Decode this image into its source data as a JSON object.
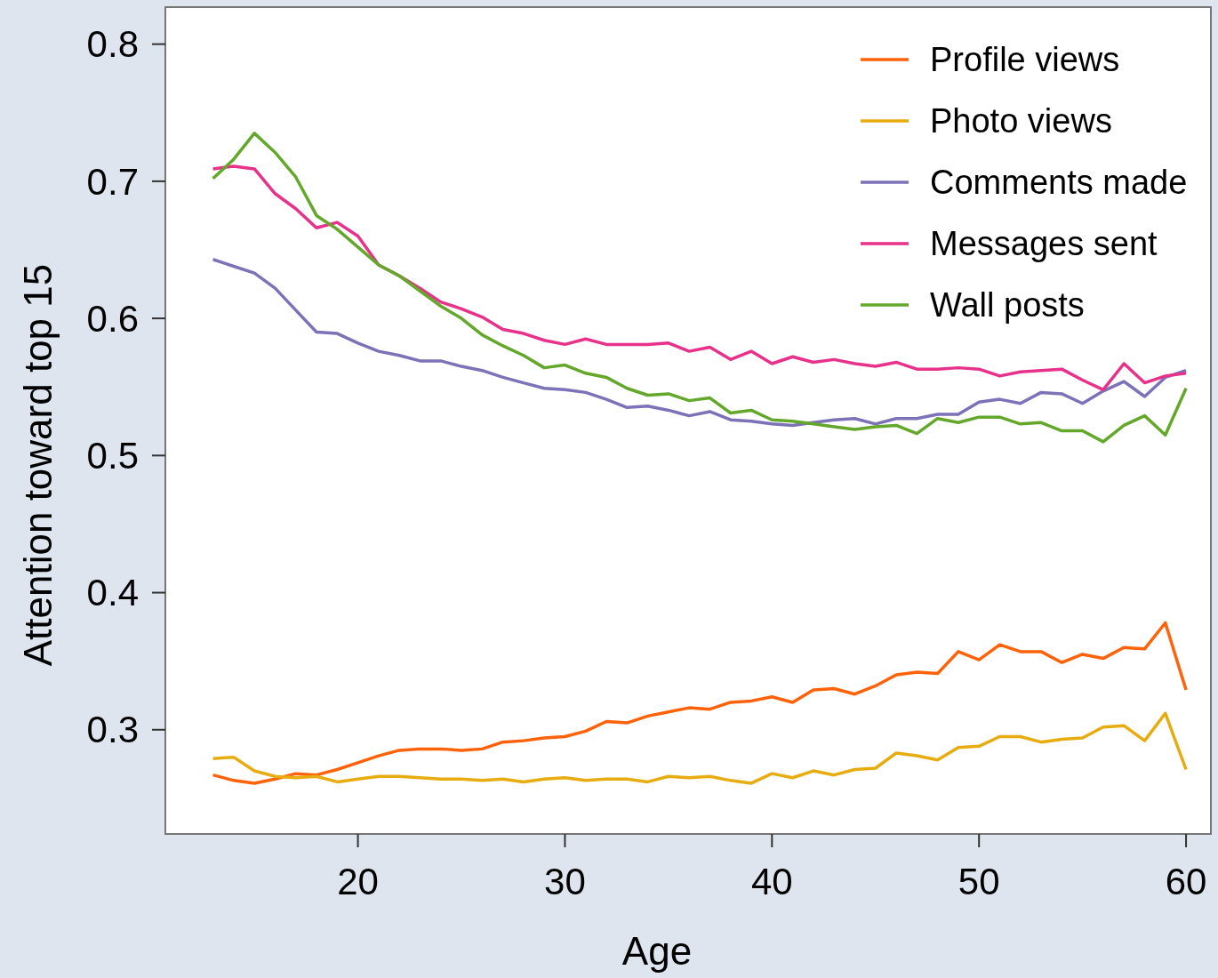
{
  "chart_data": {
    "type": "line",
    "xlabel": "Age",
    "ylabel": "Attention toward top 15",
    "x": [
      13,
      14,
      15,
      16,
      17,
      18,
      19,
      20,
      21,
      22,
      23,
      24,
      25,
      26,
      27,
      28,
      29,
      30,
      31,
      32,
      33,
      34,
      35,
      36,
      37,
      38,
      39,
      40,
      41,
      42,
      43,
      44,
      45,
      46,
      47,
      48,
      49,
      50,
      51,
      52,
      53,
      54,
      55,
      56,
      57,
      58,
      59,
      60
    ],
    "xlim": [
      10.7,
      61.2
    ],
    "xticks": [
      20,
      30,
      40,
      50,
      60
    ],
    "ylim": [
      0.224,
      0.827
    ],
    "yticks": [
      {
        "value": 0.3,
        "label": "0.3"
      },
      {
        "value": 0.4,
        "label": "0.4"
      },
      {
        "value": 0.5,
        "label": "0.5"
      },
      {
        "value": 0.6,
        "label": "0.6"
      },
      {
        "value": 0.7,
        "label": "0.7"
      },
      {
        "value": 0.8,
        "label": "0.8"
      }
    ],
    "legend": "top right",
    "grid": false,
    "series": [
      {
        "name": "Profile views",
        "color": "#ff6208",
        "values": [
          0.267,
          0.263,
          0.261,
          0.264,
          0.268,
          0.267,
          0.271,
          0.276,
          0.281,
          0.285,
          0.286,
          0.286,
          0.285,
          0.286,
          0.291,
          0.292,
          0.294,
          0.295,
          0.299,
          0.306,
          0.305,
          0.31,
          0.313,
          0.316,
          0.315,
          0.32,
          0.321,
          0.324,
          0.32,
          0.329,
          0.33,
          0.326,
          0.332,
          0.34,
          0.342,
          0.341,
          0.357,
          0.351,
          0.362,
          0.357,
          0.357,
          0.349,
          0.355,
          0.352,
          0.36,
          0.359,
          0.378,
          0.329
        ]
      },
      {
        "name": "Photo views",
        "color": "#e6ac10",
        "values": [
          0.279,
          0.28,
          0.27,
          0.266,
          0.265,
          0.266,
          0.262,
          0.264,
          0.266,
          0.266,
          0.265,
          0.264,
          0.264,
          0.263,
          0.264,
          0.262,
          0.264,
          0.265,
          0.263,
          0.264,
          0.264,
          0.262,
          0.266,
          0.265,
          0.266,
          0.263,
          0.261,
          0.268,
          0.265,
          0.27,
          0.267,
          0.271,
          0.272,
          0.283,
          0.281,
          0.278,
          0.287,
          0.288,
          0.295,
          0.295,
          0.291,
          0.293,
          0.294,
          0.302,
          0.303,
          0.292,
          0.312,
          0.271
        ]
      },
      {
        "name": "Comments made",
        "color": "#7b72b8",
        "values": [
          0.643,
          0.638,
          0.633,
          0.622,
          0.606,
          0.59,
          0.589,
          0.582,
          0.576,
          0.573,
          0.569,
          0.569,
          0.565,
          0.562,
          0.557,
          0.553,
          0.549,
          0.548,
          0.546,
          0.541,
          0.535,
          0.536,
          0.533,
          0.529,
          0.532,
          0.526,
          0.525,
          0.523,
          0.522,
          0.524,
          0.526,
          0.527,
          0.523,
          0.527,
          0.527,
          0.53,
          0.53,
          0.539,
          0.541,
          0.538,
          0.546,
          0.545,
          0.538,
          0.547,
          0.554,
          0.543,
          0.557,
          0.562
        ]
      },
      {
        "name": "Messages sent",
        "color": "#e8318a",
        "values": [
          0.709,
          0.711,
          0.709,
          0.691,
          0.68,
          0.666,
          0.67,
          0.66,
          0.639,
          0.631,
          0.622,
          0.612,
          0.607,
          0.601,
          0.592,
          0.589,
          0.584,
          0.581,
          0.585,
          0.581,
          0.581,
          0.581,
          0.582,
          0.576,
          0.579,
          0.57,
          0.576,
          0.567,
          0.572,
          0.568,
          0.57,
          0.567,
          0.565,
          0.568,
          0.563,
          0.563,
          0.564,
          0.563,
          0.558,
          0.561,
          0.562,
          0.563,
          0.555,
          0.548,
          0.567,
          0.553,
          0.558,
          0.56
        ]
      },
      {
        "name": "Wall posts",
        "color": "#63a82a",
        "values": [
          0.702,
          0.716,
          0.735,
          0.721,
          0.703,
          0.675,
          0.665,
          0.652,
          0.639,
          0.631,
          0.62,
          0.609,
          0.6,
          0.588,
          0.58,
          0.573,
          0.564,
          0.566,
          0.56,
          0.557,
          0.549,
          0.544,
          0.545,
          0.54,
          0.542,
          0.531,
          0.533,
          0.526,
          0.525,
          0.523,
          0.521,
          0.519,
          0.521,
          0.522,
          0.516,
          0.527,
          0.524,
          0.528,
          0.528,
          0.523,
          0.524,
          0.518,
          0.518,
          0.51,
          0.522,
          0.529,
          0.515,
          0.549
        ]
      }
    ]
  }
}
